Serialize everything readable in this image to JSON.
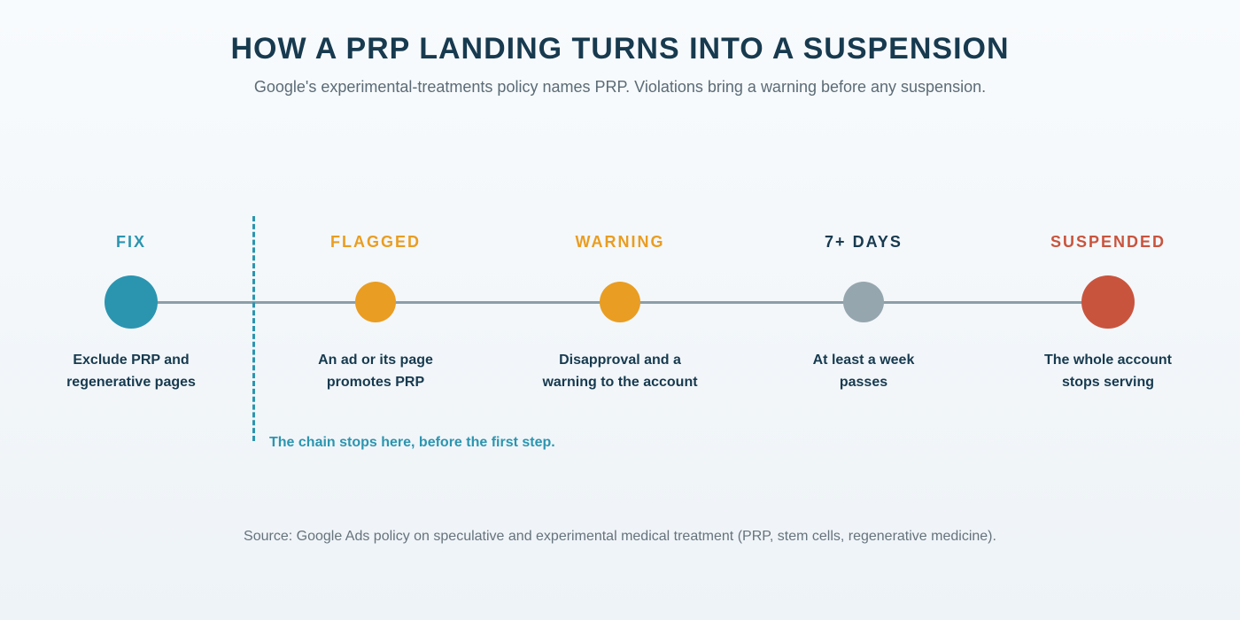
{
  "header": {
    "title": "HOW A PRP LANDING TURNS INTO A SUSPENSION",
    "subtitle": "Google's experimental-treatments policy names PRP. Violations bring a warning before any suspension."
  },
  "stages": [
    {
      "label": "FIX",
      "description_line1": "Exclude PRP and",
      "description_line2": "regenerative pages",
      "color": "#2b95b0",
      "label_color": "#2b95b0"
    },
    {
      "label": "FLAGGED",
      "description_line1": "An ad or its page",
      "description_line2": "promotes PRP",
      "color": "#e99d22",
      "label_color": "#e99d22"
    },
    {
      "label": "WARNING",
      "description_line1": "Disapproval and a",
      "description_line2": "warning to the account",
      "color": "#e99d22",
      "label_color": "#e99d22"
    },
    {
      "label": "7+ DAYS",
      "description_line1": "At least a week",
      "description_line2": "passes",
      "color": "#96a6ae",
      "label_color": "#173a4f"
    },
    {
      "label": "SUSPENDED",
      "description_line1": "The whole account",
      "description_line2": "stops serving",
      "color": "#c9543e",
      "label_color": "#c9543e"
    }
  ],
  "stop_marker": {
    "note": "The chain stops here, before the first step."
  },
  "footer": {
    "source": "Source: Google Ads policy on speculative and experimental medical treatment (PRP, stem cells, regenerative medicine)."
  }
}
